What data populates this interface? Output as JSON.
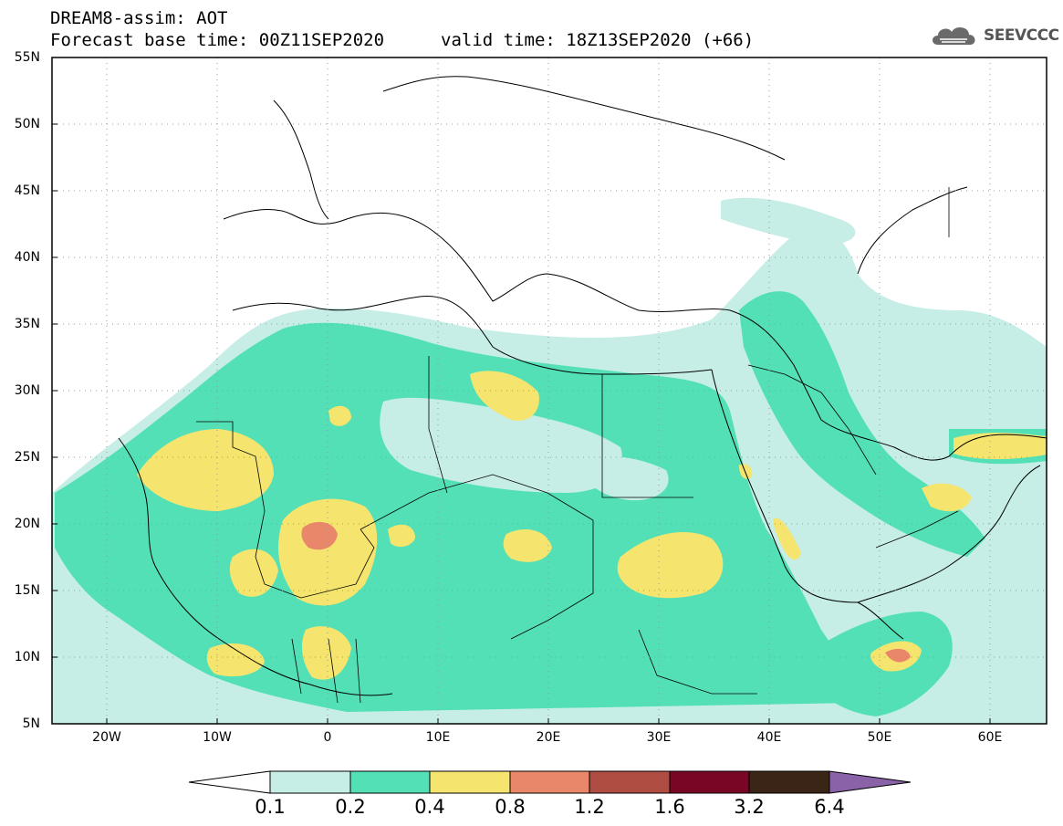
{
  "title_line1": "DREAM8-assim: AOT",
  "title_line2_base": "Forecast base time: 00Z11SEP2020",
  "title_line2_valid": "valid time: 18Z13SEP2020 (+66)",
  "logo_text": "SEEVCCC",
  "logo_icon": "cloud-icon",
  "lat_ticks": [
    "55N",
    "50N",
    "45N",
    "40N",
    "35N",
    "30N",
    "25N",
    "20N",
    "15N",
    "10N",
    "5N"
  ],
  "lon_ticks": [
    "20W",
    "10W",
    "0",
    "10E",
    "20E",
    "30E",
    "40E",
    "50E",
    "60E"
  ],
  "colorbar": {
    "labels": [
      "0.1",
      "0.2",
      "0.4",
      "0.8",
      "1.2",
      "1.6",
      "3.2",
      "6.4"
    ],
    "colors": [
      "#ffffff",
      "#c6eee6",
      "#54e0b6",
      "#f5e56f",
      "#e9876a",
      "#b04d43",
      "#7a0626",
      "#3a2516",
      "#8a62a8"
    ]
  }
}
